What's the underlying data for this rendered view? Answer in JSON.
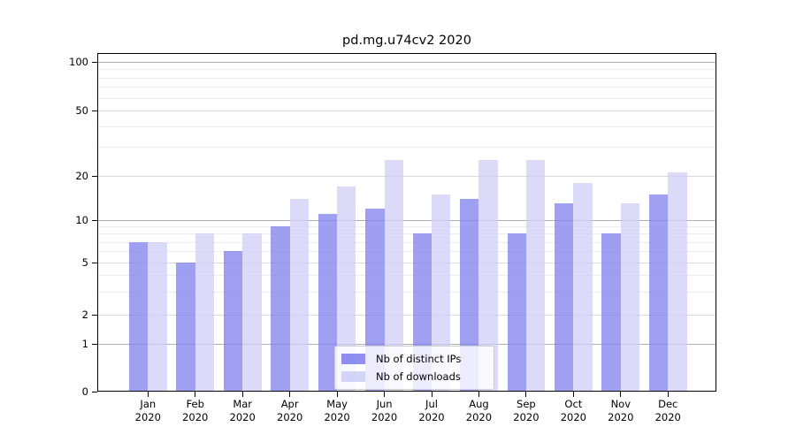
{
  "title": "pd.mg.u74cv2 2020",
  "chart_data": {
    "type": "bar",
    "title": "pd.mg.u74cv2 2020",
    "categories": [
      "Jan 2020",
      "Feb 2020",
      "Mar 2020",
      "Apr 2020",
      "May 2020",
      "Jun 2020",
      "Jul 2020",
      "Aug 2020",
      "Sep 2020",
      "Oct 2020",
      "Nov 2020",
      "Dec 2020"
    ],
    "series": [
      {
        "name": "Nb of distinct IPs",
        "color": "#7b7bed",
        "values": [
          7,
          5,
          6,
          9,
          11,
          12,
          8,
          14,
          8,
          13,
          8,
          15
        ]
      },
      {
        "name": "Nb of downloads",
        "color": "#cdcdf6",
        "values": [
          7,
          8,
          8,
          14,
          17,
          25,
          15,
          25,
          25,
          18,
          13,
          21
        ]
      }
    ],
    "yscale": "symlog",
    "ylim": [
      0,
      100
    ],
    "y_ticks": [
      0,
      1,
      2,
      5,
      10,
      20,
      50,
      100
    ],
    "y_minor_gridlines": [
      3,
      4,
      6,
      7,
      8,
      9,
      30,
      40,
      60,
      70,
      80,
      90
    ],
    "xlabel": "",
    "ylabel": "",
    "grid": true,
    "legend_position": "lower center"
  }
}
